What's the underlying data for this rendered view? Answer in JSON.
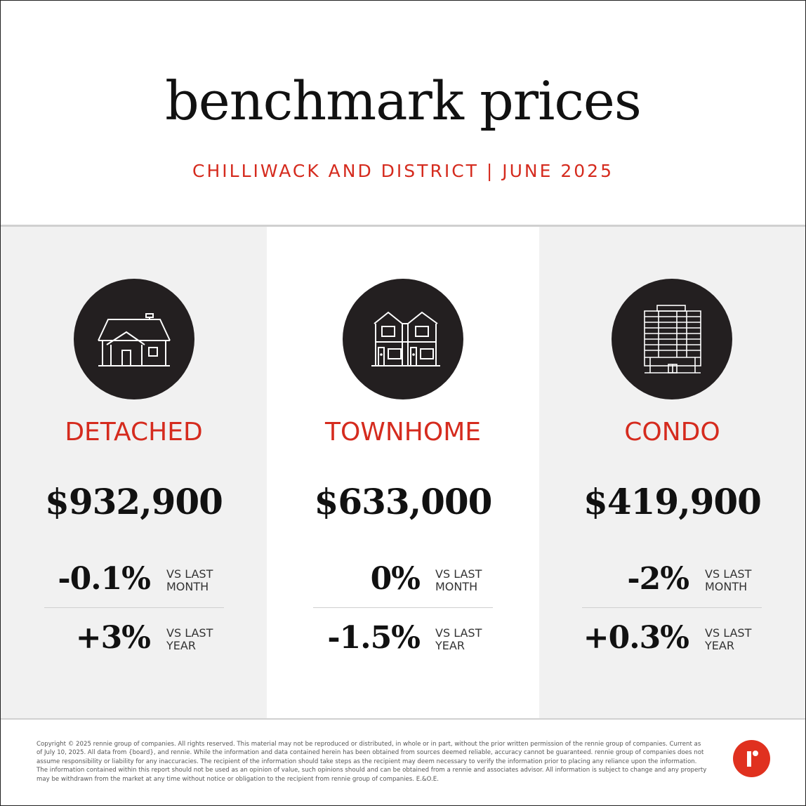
{
  "header": {
    "title": "benchmark prices",
    "subtitle": "CHILLIWACK AND DISTRICT | JUNE 2025"
  },
  "colors": {
    "accent": "#d52b1e",
    "icon_circle": "#231f20",
    "panel_grey": "#f1f1f1",
    "logo": "#e0311f"
  },
  "panels": [
    {
      "icon": "detached-house-icon",
      "type": "DETACHED",
      "price": "$932,900",
      "month": {
        "pct": "-0.1%",
        "label_1": "VS LAST",
        "label_2": "MONTH"
      },
      "year": {
        "pct": "+3%",
        "label_1": "VS LAST",
        "label_2": "YEAR"
      }
    },
    {
      "icon": "townhome-icon",
      "type": "TOWNHOME",
      "price": "$633,000",
      "month": {
        "pct": "0%",
        "label_1": "VS LAST",
        "label_2": "MONTH"
      },
      "year": {
        "pct": "-1.5%",
        "label_1": "VS LAST",
        "label_2": "YEAR"
      }
    },
    {
      "icon": "condo-building-icon",
      "type": "CONDO",
      "price": "$419,900",
      "month": {
        "pct": "-2%",
        "label_1": "VS LAST",
        "label_2": "MONTH"
      },
      "year": {
        "pct": "+0.3%",
        "label_1": "VS LAST",
        "label_2": "YEAR"
      }
    }
  ],
  "footer": {
    "disclaimer": "Copyright © 2025 rennie group of companies. All rights reserved. This material may not be reproduced or distributed, in whole or in part, without the prior written permission of the rennie group of companies. Current as of July 10, 2025. All data from {board}, and rennie. While the information and data contained herein has been obtained from sources deemed reliable, accuracy cannot be guaranteed. rennie group of companies does not assume responsibility or liability for any inaccuracies. The recipient of the information should take steps as the recipient may deem necessary to verify the information prior to placing any reliance upon the information. The information contained within this report should not be used as an opinion of value, such opinions should and can be obtained from a rennie and associates advisor. All information is subject to change and any property may be withdrawn from the market at any time without notice or obligation to the recipient from rennie group of companies. E.&O.E.",
    "logo_icon": "rennie-logo-icon"
  }
}
